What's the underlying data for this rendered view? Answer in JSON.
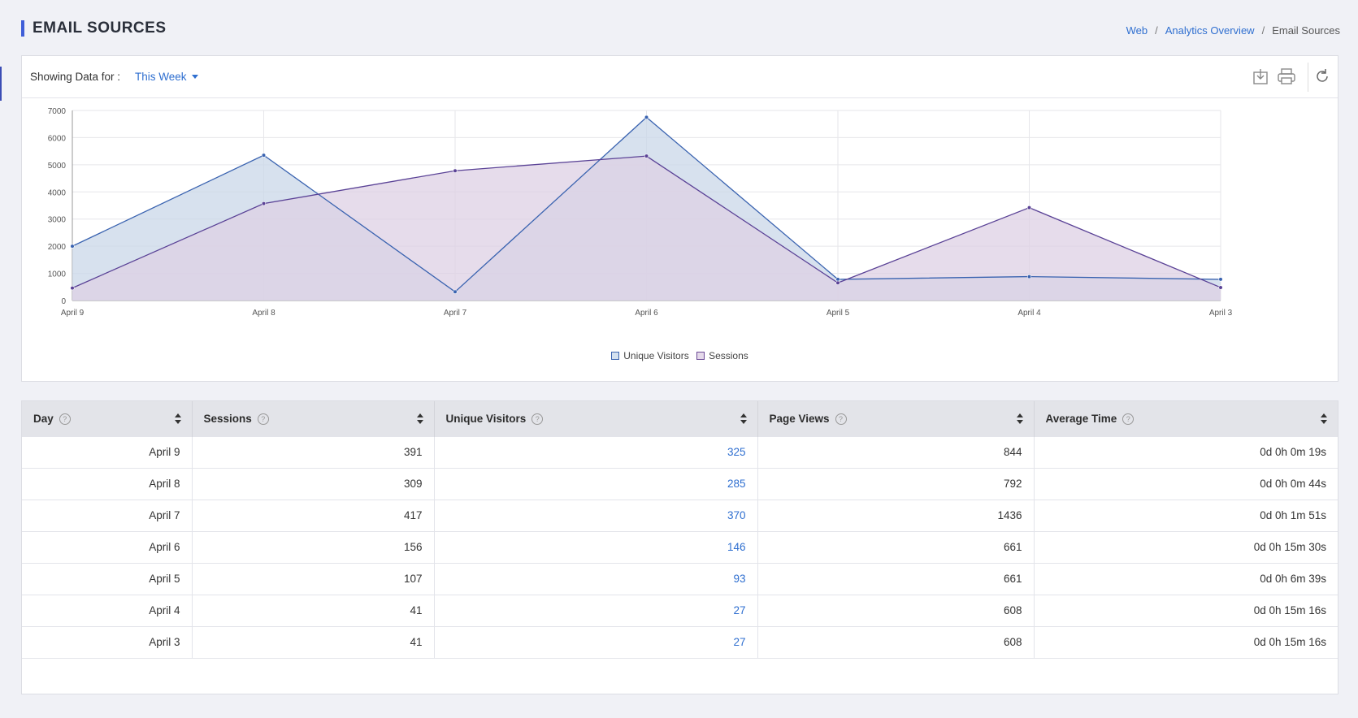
{
  "page": {
    "title": "EMAIL SOURCES",
    "breadcrumb": [
      {
        "label": "Web"
      },
      {
        "label": "Analytics Overview"
      },
      {
        "label": "Email Sources"
      }
    ]
  },
  "toolbar": {
    "showing_label": "Showing Data for :",
    "range_value": "This Week",
    "icons": [
      "download-icon",
      "print-icon",
      "refresh-icon"
    ]
  },
  "colors": {
    "accent": "#3f5ed8",
    "link": "#2f6fd0",
    "unique_visitors_line": "#3a63b0",
    "unique_visitors_fill": "#c9d7e8",
    "sessions_line": "#5a4296",
    "sessions_fill": "#ddd0e4"
  },
  "chart_data": {
    "type": "area",
    "x": [
      "April 9",
      "April 8",
      "April 7",
      "April 6",
      "April 5",
      "April 4",
      "April 3"
    ],
    "ylim": [
      0,
      7000
    ],
    "yticks": [
      "0",
      "1000",
      "2000",
      "3000",
      "4000",
      "5000",
      "6000",
      "7000"
    ],
    "grid": true,
    "legend_position": "bottom",
    "series": [
      {
        "name": "Unique Visitors",
        "values": [
          2000,
          5350,
          320,
          6750,
          780,
          880,
          780
        ]
      },
      {
        "name": "Sessions",
        "values": [
          460,
          3570,
          4780,
          5320,
          650,
          3420,
          480
        ]
      }
    ]
  },
  "table": {
    "columns": [
      "Day",
      "Sessions",
      "Unique Visitors",
      "Page Views",
      "Average Time"
    ],
    "rows": [
      [
        "April 9",
        "391",
        "325",
        "844",
        "0d 0h 0m 19s"
      ],
      [
        "April 8",
        "309",
        "285",
        "792",
        "0d 0h 0m 44s"
      ],
      [
        "April 7",
        "417",
        "370",
        "1436",
        "0d 0h 1m 51s"
      ],
      [
        "April 6",
        "156",
        "146",
        "661",
        "0d 0h 15m 30s"
      ],
      [
        "April 5",
        "107",
        "93",
        "661",
        "0d 0h 6m 39s"
      ],
      [
        "April 4",
        "41",
        "27",
        "608",
        "0d 0h 15m 16s"
      ],
      [
        "April 3",
        "41",
        "27",
        "608",
        "0d 0h 15m 16s"
      ]
    ]
  }
}
